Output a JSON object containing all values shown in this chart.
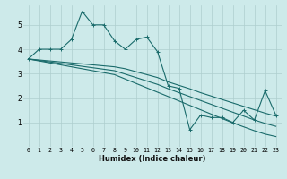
{
  "xlabel": "Humidex (Indice chaleur)",
  "xlim": [
    -0.5,
    23.5
  ],
  "ylim": [
    0.0,
    5.8
  ],
  "yticks": [
    1,
    2,
    3,
    4,
    5
  ],
  "xticks": [
    0,
    1,
    2,
    3,
    4,
    5,
    6,
    7,
    8,
    9,
    10,
    11,
    12,
    13,
    14,
    15,
    16,
    17,
    18,
    19,
    20,
    21,
    22,
    23
  ],
  "bg_color": "#cdeaea",
  "grid_color": "#aecece",
  "line_color": "#1a6b6b",
  "line1": [
    3.6,
    4.0,
    4.0,
    4.0,
    4.4,
    5.55,
    5.0,
    5.0,
    4.35,
    4.0,
    4.4,
    4.5,
    3.9,
    2.5,
    2.4,
    0.7,
    1.3,
    1.2,
    1.2,
    1.0,
    1.5,
    1.1,
    2.3,
    1.3
  ],
  "line2": [
    3.6,
    3.56,
    3.52,
    3.48,
    3.44,
    3.4,
    3.36,
    3.32,
    3.28,
    3.2,
    3.08,
    2.96,
    2.84,
    2.66,
    2.52,
    2.38,
    2.22,
    2.08,
    1.94,
    1.8,
    1.66,
    1.52,
    1.38,
    1.26
  ],
  "line3": [
    3.6,
    3.54,
    3.48,
    3.42,
    3.36,
    3.3,
    3.24,
    3.18,
    3.12,
    2.98,
    2.84,
    2.7,
    2.56,
    2.38,
    2.22,
    2.06,
    1.9,
    1.74,
    1.58,
    1.42,
    1.26,
    1.1,
    0.96,
    0.84
  ],
  "line4": [
    3.6,
    3.52,
    3.44,
    3.36,
    3.28,
    3.2,
    3.12,
    3.04,
    2.96,
    2.78,
    2.6,
    2.42,
    2.24,
    2.06,
    1.88,
    1.7,
    1.52,
    1.34,
    1.16,
    0.98,
    0.82,
    0.66,
    0.52,
    0.42
  ]
}
